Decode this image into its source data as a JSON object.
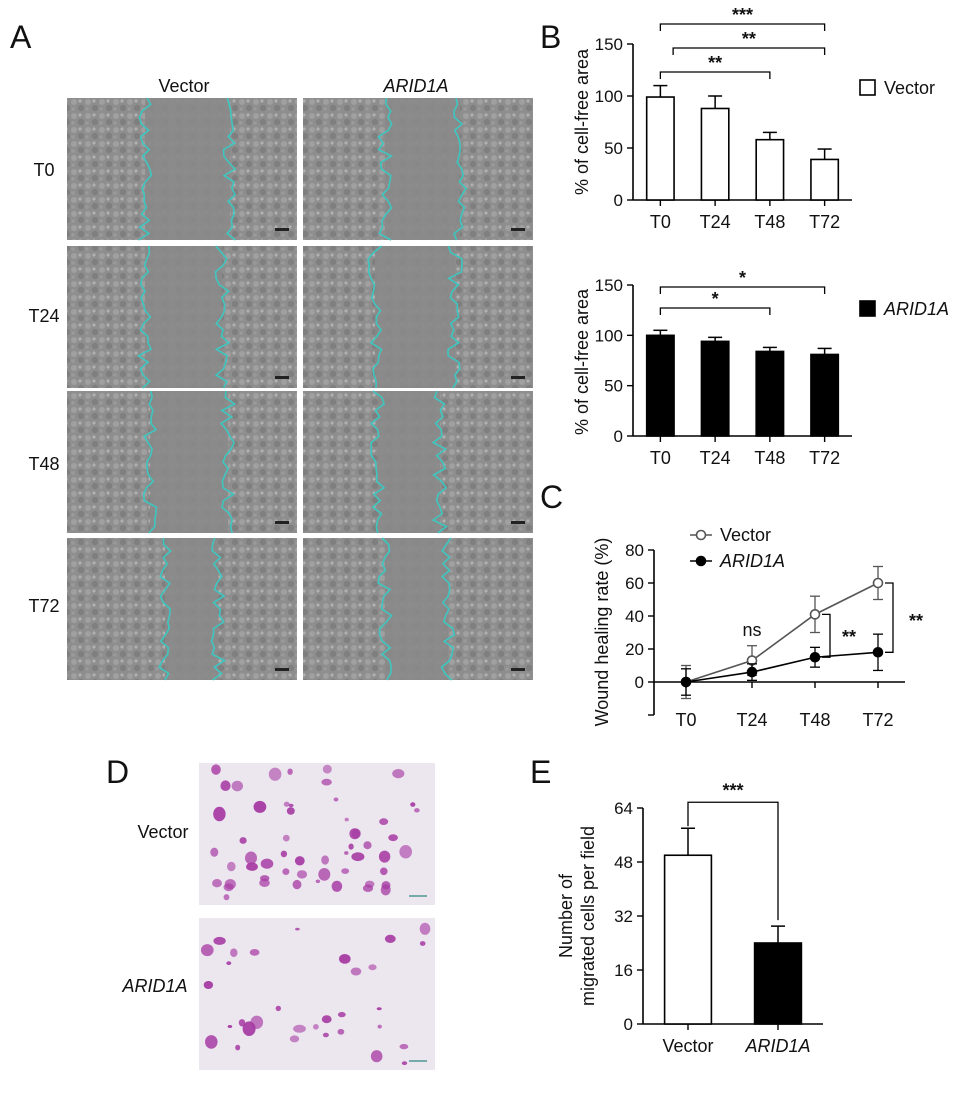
{
  "panel_labels": {
    "a": "A",
    "b": "B",
    "c": "C",
    "d": "D",
    "e": "E"
  },
  "panel_a": {
    "columns": [
      "Vector",
      "ARID1A"
    ],
    "rows": [
      "T0",
      "T24",
      "T48",
      "T72"
    ]
  },
  "panel_d": {
    "rows": [
      "Vector",
      "ARID1A"
    ]
  },
  "colors": {
    "wound_outline": "#3ec7c0",
    "stain": "#a63aa3",
    "micrograph_bg": "#8d8d8d",
    "transwell_bg": "#ece6ef"
  },
  "chart_data": [
    {
      "id": "B-top",
      "type": "bar",
      "categories": [
        "T0",
        "T24",
        "T48",
        "T72"
      ],
      "values": [
        99,
        88,
        58,
        39
      ],
      "errors": [
        11,
        12,
        7,
        10
      ],
      "ylabel": "% of cell-free area",
      "ylim": [
        0,
        150
      ],
      "yticks": [
        0,
        50,
        100,
        150
      ],
      "legend": "Vector",
      "fill": "#ffffff",
      "significance": [
        {
          "from": "T0",
          "to": "T72",
          "label": "***"
        },
        {
          "from": "T24",
          "to": "T72",
          "label": "**"
        },
        {
          "from": "T0",
          "to": "T48",
          "label": "**"
        }
      ]
    },
    {
      "id": "B-bottom",
      "type": "bar",
      "categories": [
        "T0",
        "T24",
        "T48",
        "T72"
      ],
      "values": [
        100,
        94,
        84,
        81
      ],
      "errors": [
        5,
        4,
        4,
        6
      ],
      "ylabel": "% of cell-free area",
      "ylim": [
        0,
        150
      ],
      "yticks": [
        0,
        50,
        100,
        150
      ],
      "legend": "ARID1A",
      "fill": "#000000",
      "significance": [
        {
          "from": "T0",
          "to": "T72",
          "label": "*"
        },
        {
          "from": "T0",
          "to": "T48",
          "label": "*"
        }
      ]
    },
    {
      "id": "C",
      "type": "line",
      "categories": [
        "T0",
        "T24",
        "T48",
        "T72"
      ],
      "ylabel": "Wound healing rate (%)",
      "ylim": [
        -20,
        80
      ],
      "yticks": [
        0,
        20,
        40,
        60,
        80
      ],
      "series": [
        {
          "name": "Vector",
          "values": [
            0,
            13,
            41,
            60
          ],
          "errors": [
            10,
            9,
            11,
            10
          ],
          "marker": "open"
        },
        {
          "name": "ARID1A",
          "values": [
            0,
            6,
            15,
            18
          ],
          "errors": [
            8,
            5,
            6,
            11
          ],
          "marker": "filled"
        }
      ],
      "annotations": [
        {
          "at": "T24",
          "label": "ns"
        },
        {
          "at": "T48",
          "label": "**"
        },
        {
          "at": "T72",
          "label": "**"
        }
      ]
    },
    {
      "id": "E",
      "type": "bar",
      "categories": [
        "Vector",
        "ARID1A"
      ],
      "values": [
        50,
        24
      ],
      "errors": [
        8,
        5
      ],
      "fills": [
        "#ffffff",
        "#000000"
      ],
      "ylabel": "Number of\nmigrated cells per field",
      "ylim": [
        0,
        64
      ],
      "yticks": [
        0,
        16,
        32,
        48,
        64
      ],
      "significance": [
        {
          "from": "Vector",
          "to": "ARID1A",
          "label": "***"
        }
      ]
    }
  ]
}
